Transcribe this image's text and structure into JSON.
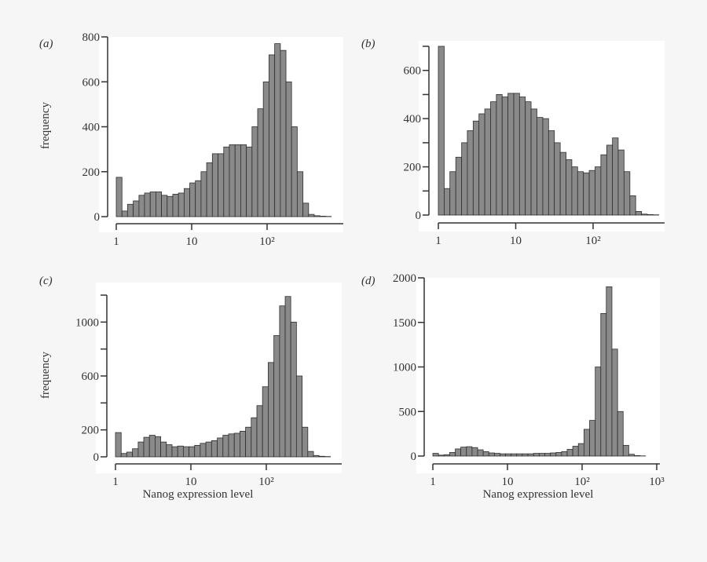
{
  "chart_data": [
    {
      "type": "bar",
      "panel_label": "(a)",
      "ylabel": "frequency",
      "xlabel": "",
      "x_scale": "log",
      "xlim": [
        1,
        708
      ],
      "ylim": [
        0,
        800
      ],
      "x_ticks": [
        "1",
        "10",
        "10²"
      ],
      "x_tick_values": [
        1,
        10,
        100
      ],
      "y_ticks": [
        "0",
        "200",
        "400",
        "600",
        "800"
      ],
      "y_tick_values": [
        0,
        200,
        400,
        600,
        800
      ],
      "bin_edges": [
        1,
        1.19,
        1.41,
        1.68,
        2.0,
        2.37,
        2.82,
        3.35,
        3.98,
        4.73,
        5.62,
        6.68,
        7.94,
        9.44,
        11.2,
        13.3,
        15.8,
        18.8,
        22.4,
        26.6,
        31.6,
        37.6,
        44.7,
        53.1,
        63.1,
        75.0,
        89.1,
        106,
        126,
        150,
        178,
        211,
        251,
        299,
        355,
        422,
        501,
        596,
        708
      ],
      "values": [
        175,
        25,
        55,
        70,
        95,
        105,
        110,
        110,
        95,
        90,
        100,
        105,
        125,
        150,
        160,
        200,
        240,
        280,
        280,
        310,
        320,
        320,
        320,
        310,
        400,
        480,
        600,
        720,
        770,
        740,
        600,
        400,
        200,
        60,
        10,
        4,
        2,
        1
      ]
    },
    {
      "type": "bar",
      "panel_label": "(b)",
      "ylabel": "",
      "xlabel": "",
      "x_scale": "log",
      "xlim": [
        1,
        708
      ],
      "ylim": [
        0,
        700
      ],
      "x_ticks": [
        "1",
        "10",
        "10²"
      ],
      "x_tick_values": [
        1,
        10,
        100
      ],
      "y_ticks": [
        "0",
        "",
        "200",
        "",
        "400",
        "",
        "600",
        ""
      ],
      "y_tick_values": [
        0,
        100,
        200,
        300,
        400,
        500,
        600,
        700
      ],
      "bin_edges": [
        1,
        1.19,
        1.41,
        1.68,
        2.0,
        2.37,
        2.82,
        3.35,
        3.98,
        4.73,
        5.62,
        6.68,
        7.94,
        9.44,
        11.2,
        13.3,
        15.8,
        18.8,
        22.4,
        26.6,
        31.6,
        37.6,
        44.7,
        53.1,
        63.1,
        75.0,
        89.1,
        106,
        126,
        150,
        178,
        211,
        251,
        299,
        355,
        422,
        501,
        596,
        708
      ],
      "values": [
        700,
        110,
        180,
        240,
        300,
        350,
        390,
        420,
        440,
        470,
        500,
        490,
        505,
        505,
        490,
        470,
        440,
        405,
        400,
        350,
        300,
        260,
        230,
        200,
        180,
        175,
        185,
        200,
        250,
        290,
        320,
        270,
        180,
        80,
        15,
        4,
        2,
        1
      ]
    },
    {
      "type": "bar",
      "panel_label": "(c)",
      "ylabel": "frequency",
      "xlabel": "Nanog expression level",
      "x_scale": "log",
      "xlim": [
        1,
        708
      ],
      "ylim": [
        0,
        1200
      ],
      "x_ticks": [
        "1",
        "10",
        "10²"
      ],
      "x_tick_values": [
        1,
        10,
        100
      ],
      "y_ticks": [
        "0",
        "200",
        "",
        "600",
        "",
        "1000",
        ""
      ],
      "y_tick_values": [
        0,
        200,
        400,
        600,
        800,
        1000,
        1200
      ],
      "bin_edges": [
        1,
        1.19,
        1.41,
        1.68,
        2.0,
        2.37,
        2.82,
        3.35,
        3.98,
        4.73,
        5.62,
        6.68,
        7.94,
        9.44,
        11.2,
        13.3,
        15.8,
        18.8,
        22.4,
        26.6,
        31.6,
        37.6,
        44.7,
        53.1,
        63.1,
        75.0,
        89.1,
        106,
        126,
        150,
        178,
        211,
        251,
        299,
        355,
        422,
        501,
        596,
        708
      ],
      "values": [
        180,
        25,
        35,
        60,
        110,
        145,
        160,
        150,
        110,
        90,
        75,
        80,
        75,
        75,
        85,
        100,
        110,
        120,
        140,
        160,
        170,
        175,
        190,
        220,
        290,
        380,
        520,
        700,
        900,
        1120,
        1190,
        1000,
        600,
        220,
        40,
        10,
        4,
        2
      ]
    },
    {
      "type": "bar",
      "panel_label": "(d)",
      "ylabel": "",
      "xlabel": "Nanog expression level",
      "x_scale": "log",
      "xlim": [
        1,
        1000
      ],
      "ylim": [
        0,
        2000
      ],
      "x_ticks": [
        "1",
        "10",
        "10²",
        "10³"
      ],
      "x_tick_values": [
        1,
        10,
        100,
        1000
      ],
      "y_ticks": [
        "0",
        "500",
        "1000",
        "1500",
        "2000"
      ],
      "y_tick_values": [
        0,
        500,
        1000,
        1500,
        2000
      ],
      "bin_edges": [
        1,
        1.19,
        1.41,
        1.68,
        2.0,
        2.37,
        2.82,
        3.35,
        3.98,
        4.73,
        5.62,
        6.68,
        7.94,
        9.44,
        11.2,
        13.3,
        15.8,
        18.8,
        22.4,
        26.6,
        31.6,
        37.6,
        44.7,
        53.1,
        63.1,
        75.0,
        89.1,
        106,
        126,
        150,
        178,
        211,
        251,
        299,
        355,
        422,
        501,
        596,
        708
      ],
      "values": [
        30,
        10,
        15,
        40,
        80,
        100,
        105,
        95,
        70,
        50,
        35,
        30,
        25,
        25,
        25,
        25,
        25,
        25,
        30,
        30,
        30,
        35,
        40,
        50,
        75,
        110,
        140,
        300,
        400,
        1000,
        1600,
        1900,
        1200,
        500,
        120,
        20,
        5,
        2
      ]
    }
  ],
  "colors": {
    "bar_fill": "#8a8a8a",
    "bar_stroke": "#2e2e2e",
    "axis": "#333333",
    "plot_bg": "#ffffff",
    "page_bg": "#f6f6f6"
  }
}
